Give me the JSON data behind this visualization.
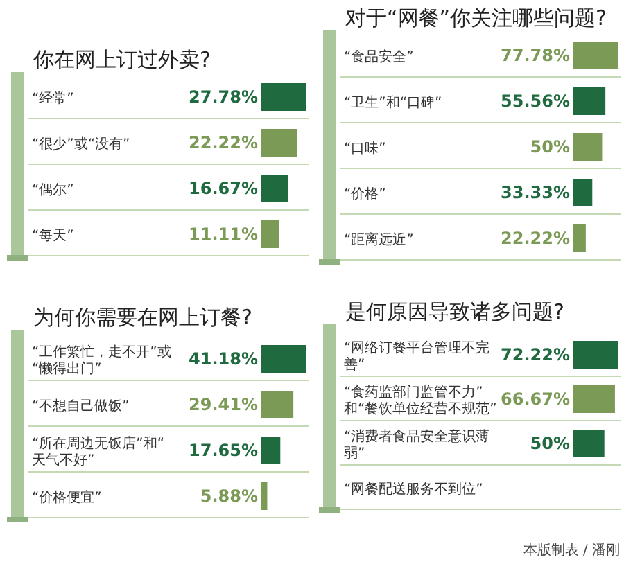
{
  "chart_data": [
    {
      "type": "bar",
      "orientation": "horizontal",
      "title": "你在网上订过外卖?",
      "categories": [
        "“经常”",
        "“很少”或“没有”",
        "“偶尔”",
        "“每天”"
      ],
      "values": [
        27.78,
        22.22,
        16.67,
        11.11
      ],
      "value_labels": [
        "27.78%",
        "22.22%",
        "16.67%",
        "11.11%"
      ],
      "colors": [
        "#1f6b3f",
        "#7b9a56",
        "#1f6b3f",
        "#7b9a56"
      ]
    },
    {
      "type": "bar",
      "orientation": "horizontal",
      "title": "对于“网餐”你关注哪些问题?",
      "categories": [
        "“食品安全”",
        "“卫生”和“口碑”",
        "“口味”",
        "“价格”",
        "“距离远近”"
      ],
      "values": [
        77.78,
        55.56,
        50,
        33.33,
        22.22
      ],
      "value_labels": [
        "77.78%",
        "55.56%",
        "50%",
        "33.33%",
        "22.22%"
      ],
      "colors": [
        "#7b9a56",
        "#1f6b3f",
        "#7b9a56",
        "#1f6b3f",
        "#7b9a56"
      ]
    },
    {
      "type": "bar",
      "orientation": "horizontal",
      "title": "为何你需要在网上订餐?",
      "categories": [
        "“工作繁忙，走不开”或“懒得出门”",
        "“不想自己做饭”",
        "“所在周边无饭店”和“天气不好”",
        "“价格便宜”"
      ],
      "values": [
        41.18,
        29.41,
        17.65,
        5.88
      ],
      "value_labels": [
        "41.18%",
        "29.41%",
        "17.65%",
        "5.88%"
      ],
      "colors": [
        "#1f6b3f",
        "#7b9a56",
        "#1f6b3f",
        "#7b9a56"
      ]
    },
    {
      "type": "bar",
      "orientation": "horizontal",
      "title": "是何原因导致诸多问题?",
      "categories": [
        "“网络订餐平台管理不完善”",
        "“食药监部门监管不力”和“餐饮单位经营不规范”",
        "“消费者食品安全意识薄弱”",
        "“网餐配送服务不到位”"
      ],
      "values": [
        72.22,
        66.67,
        50,
        null
      ],
      "value_labels": [
        "72.22%",
        "66.67%",
        "50%",
        null
      ],
      "colors": [
        "#1f6b3f",
        "#7b9a56",
        "#1f6b3f",
        "#7b9a56"
      ],
      "annotations": [
        "本版制表 / 潘刚"
      ]
    }
  ]
}
